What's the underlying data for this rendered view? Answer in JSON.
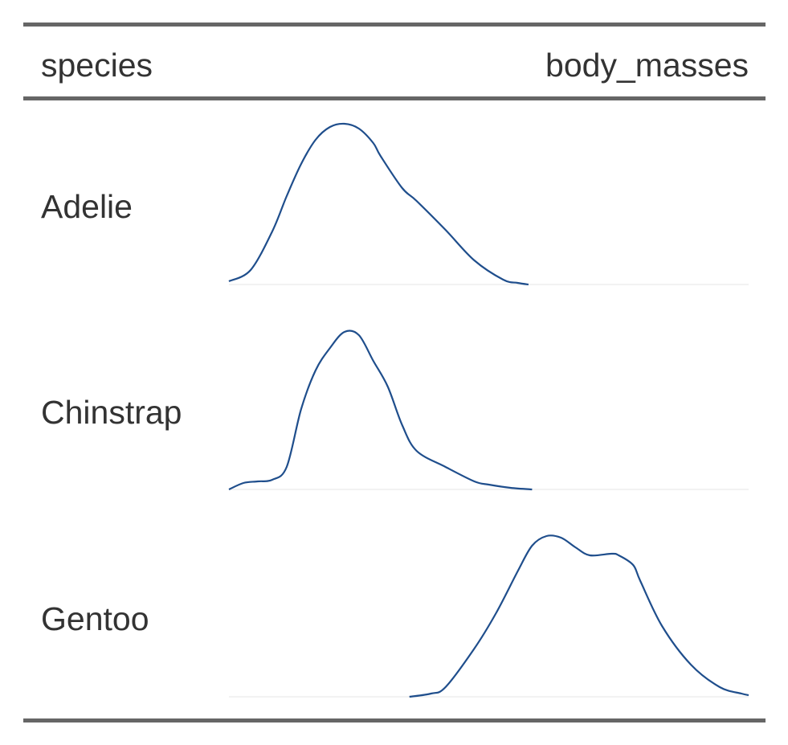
{
  "table": {
    "columns": [
      "species",
      "body_masses"
    ],
    "rows": [
      {
        "species": "Adelie"
      },
      {
        "species": "Chinstrap"
      },
      {
        "species": "Gentoo"
      }
    ]
  },
  "colors": {
    "line": "#1f4e8c",
    "baseline": "#eeeeee",
    "rule": "#666666",
    "text": "#333333"
  },
  "chart_data": {
    "type": "area",
    "xlabel": "",
    "ylabel": "",
    "xlim": [
      2700,
      6300
    ],
    "grid": false,
    "legend": "none",
    "series": [
      {
        "name": "Adelie",
        "x": [
          2700,
          2850,
          3000,
          3100,
          3200,
          3300,
          3400,
          3500,
          3600,
          3700,
          3750,
          3900,
          4000,
          4200,
          4400,
          4600,
          4700,
          4775
        ],
        "y": [
          0.02,
          0.09,
          0.33,
          0.55,
          0.75,
          0.9,
          0.98,
          1.0,
          0.97,
          0.88,
          0.8,
          0.6,
          0.52,
          0.34,
          0.15,
          0.03,
          0.01,
          0.0
        ]
      },
      {
        "name": "Chinstrap",
        "x": [
          2700,
          2800,
          2900,
          3000,
          3100,
          3200,
          3300,
          3400,
          3500,
          3600,
          3700,
          3800,
          3900,
          4000,
          4200,
          4400,
          4500,
          4650,
          4800
        ],
        "y": [
          0.0,
          0.04,
          0.05,
          0.06,
          0.14,
          0.5,
          0.74,
          0.88,
          0.98,
          0.96,
          0.8,
          0.64,
          0.4,
          0.24,
          0.14,
          0.05,
          0.03,
          0.01,
          0.0
        ]
      },
      {
        "name": "Gentoo",
        "x": [
          3950,
          4100,
          4200,
          4400,
          4550,
          4700,
          4800,
          4900,
          5000,
          5100,
          5200,
          5350,
          5400,
          5500,
          5550,
          5700,
          5900,
          6100,
          6250,
          6300
        ],
        "y": [
          0.0,
          0.02,
          0.06,
          0.3,
          0.52,
          0.78,
          0.94,
          1.0,
          0.99,
          0.93,
          0.88,
          0.89,
          0.88,
          0.82,
          0.72,
          0.44,
          0.2,
          0.06,
          0.02,
          0.01
        ]
      }
    ]
  }
}
